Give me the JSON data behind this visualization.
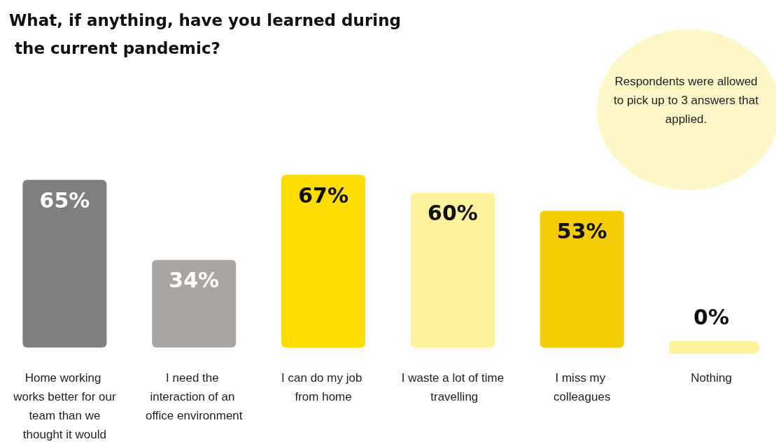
{
  "chart_data": {
    "type": "bar",
    "title": "What, if anything, have you learned during the current pandemic?",
    "categories": [
      "Home working works better for our team than we thought it would",
      "I need the interaction of an office environment",
      "I can do my job from home",
      "I waste a lot of time travelling",
      "I miss my colleagues",
      "Nothing"
    ],
    "values": [
      65,
      34,
      67,
      60,
      53,
      0
    ],
    "colors": [
      "#7f7f7f",
      "#aaa5a2",
      "#ffdd00",
      "#fef29c",
      "#f5cc00",
      "#fef29c"
    ],
    "value_labels": [
      "65%",
      "34%",
      "67%",
      "60%",
      "53%",
      "0%"
    ],
    "annotations": [
      "Respondents were allowed to pick up to 3 answers that applied."
    ]
  }
}
